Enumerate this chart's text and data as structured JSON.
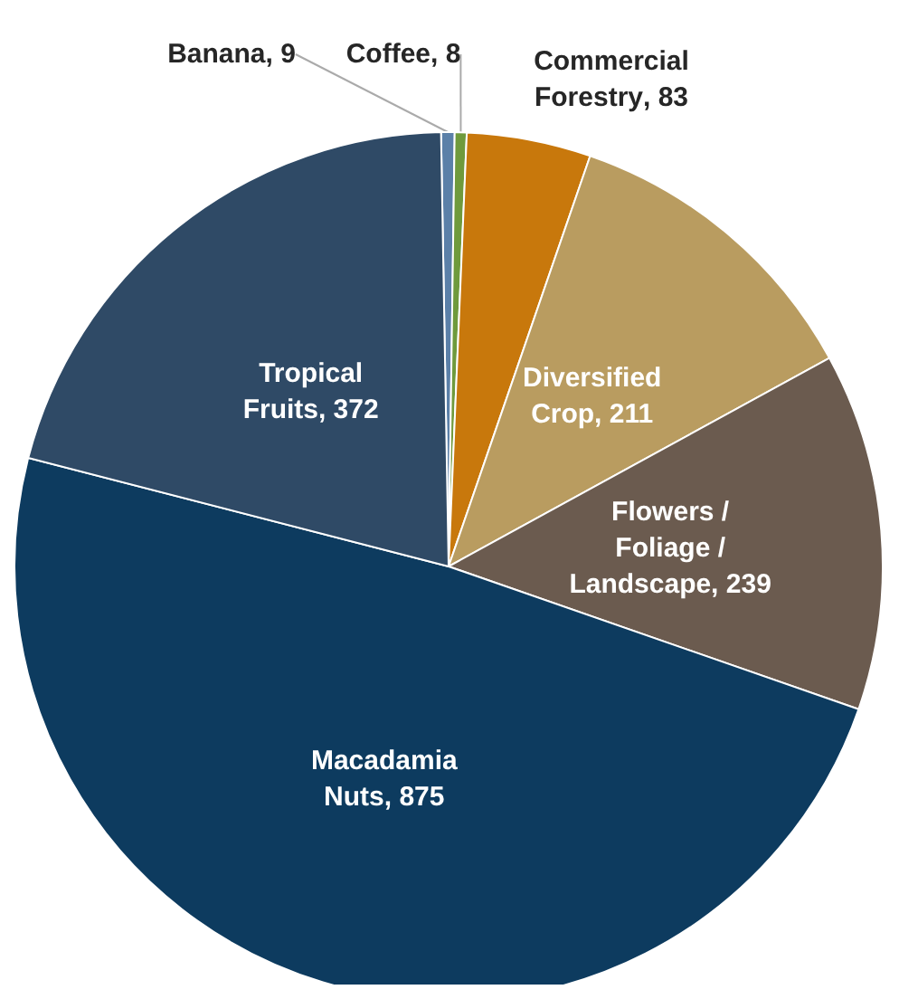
{
  "chart_data": {
    "type": "pie",
    "categories": [
      "Banana",
      "Coffee",
      "Commercial Forestry",
      "Diversified Crop",
      "Flowers / Foliage / Landscape",
      "Macadamia Nuts",
      "Tropical Fruits"
    ],
    "values": [
      9,
      8,
      83,
      211,
      239,
      875,
      372
    ],
    "colors": [
      "#5b80a8",
      "#6f9a3c",
      "#c8780c",
      "#b99c60",
      "#6b5b4f",
      "#0d3b5f",
      "#2f4a66"
    ],
    "value_labels": [
      ", 9",
      ", 8",
      ", 83",
      ", 211",
      ", 239",
      ", 875",
      ", 372"
    ],
    "legend": false
  }
}
